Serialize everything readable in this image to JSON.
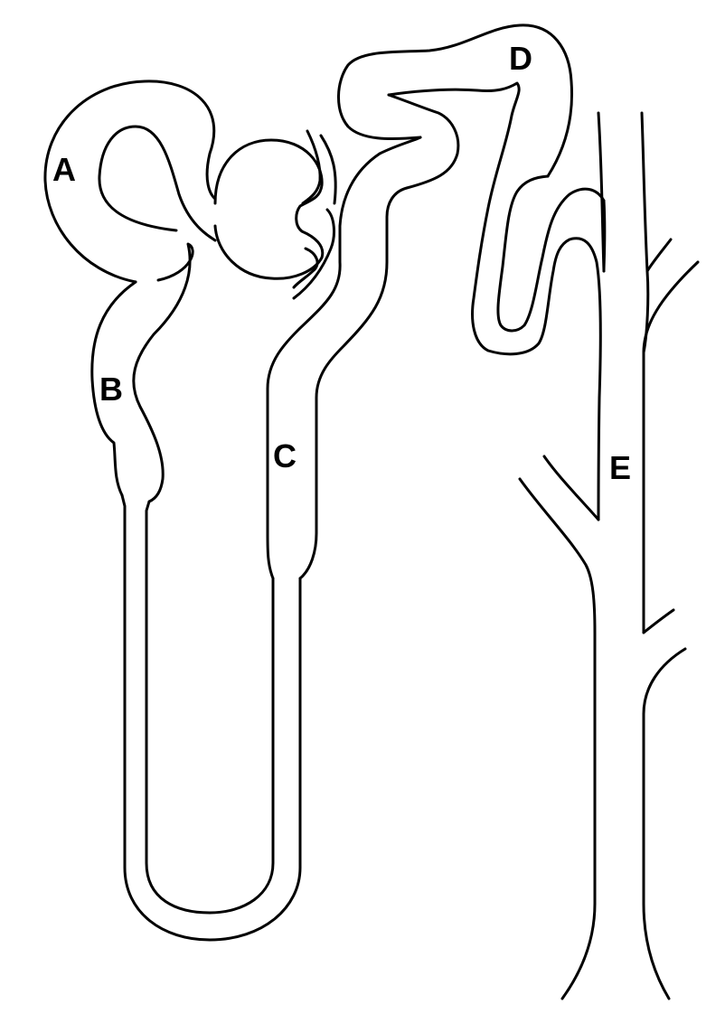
{
  "diagram": {
    "subject": "nephron",
    "labels": {
      "a": "A",
      "b": "B",
      "c": "C",
      "d": "D",
      "e": "E"
    },
    "line_color": "#000000",
    "background_color": "#ffffff"
  }
}
